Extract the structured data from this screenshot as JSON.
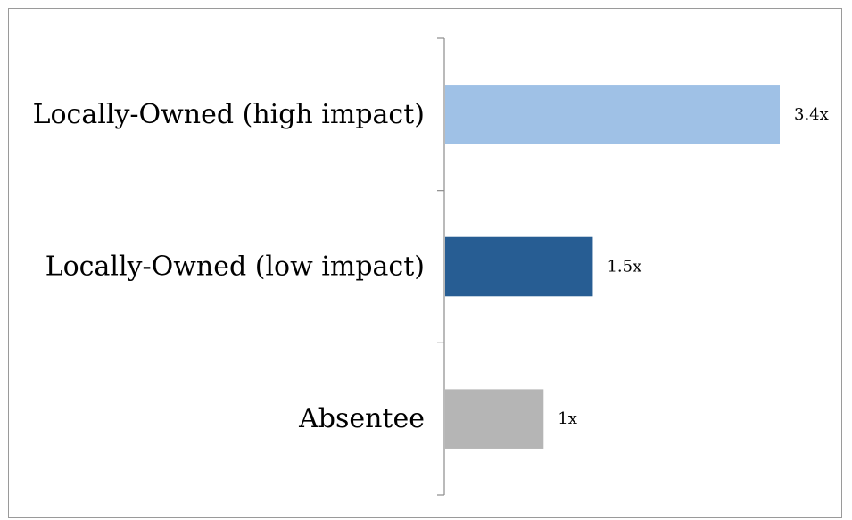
{
  "chart_data": {
    "type": "bar",
    "orientation": "horizontal",
    "categories": [
      "Locally-Owned (high impact)",
      "Locally-Owned (low impact)",
      "Absentee"
    ],
    "values": [
      3.4,
      1.5,
      1
    ],
    "data_labels": [
      "3.4x",
      "1.5x",
      "1x"
    ],
    "colors": [
      "#9fc1e6",
      "#275d93",
      "#b5b5b5"
    ],
    "title": "",
    "xlabel": "",
    "ylabel": "",
    "xlim": [
      0,
      3.4
    ],
    "grid": false,
    "legend": "none"
  }
}
